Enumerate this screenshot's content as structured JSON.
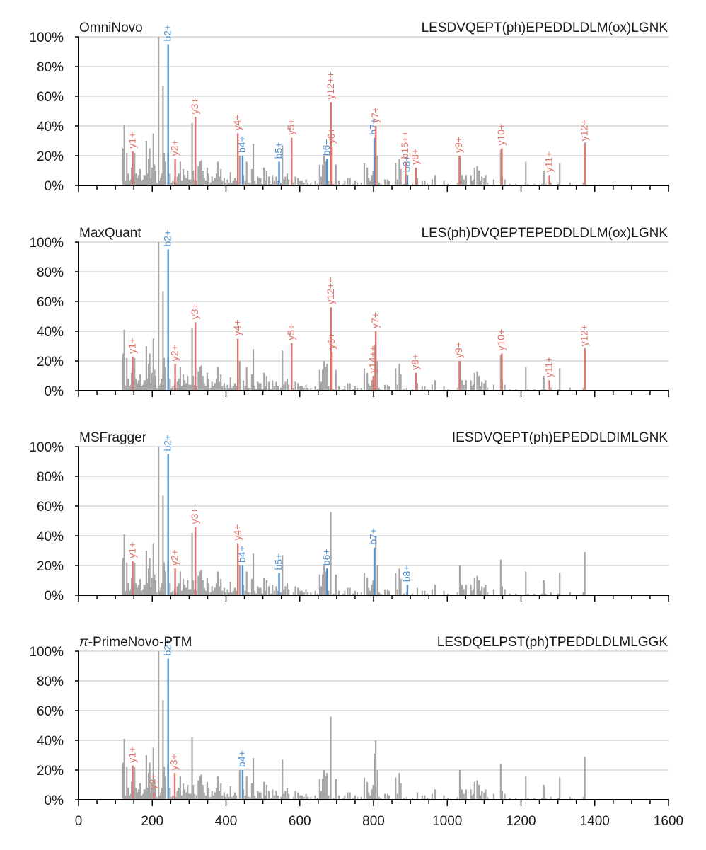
{
  "chart_data": {
    "type": "bar",
    "subtype": "annotated MS/MS spectra (stem plot)",
    "x_range": [
      0,
      1600
    ],
    "x_ticks": [
      "0",
      "200",
      "400",
      "600",
      "800",
      "1000",
      "1200",
      "1400",
      "1600"
    ],
    "y_range": [
      0,
      100
    ],
    "y_ticks": [
      "0%",
      "20%",
      "40%",
      "60%",
      "80%",
      "100%"
    ],
    "grid": "horizontal",
    "colors": {
      "unmatched": "#a6a6a6",
      "b_ion": "#4a90d0",
      "y_ion": "#e0726a",
      "grid": "#cfcfcf",
      "axis": "#000000"
    },
    "unmatched_peaks": [
      [
        121,
        25
      ],
      [
        124,
        41
      ],
      [
        127,
        3
      ],
      [
        131,
        22
      ],
      [
        135,
        8
      ],
      [
        139,
        3
      ],
      [
        142,
        4
      ],
      [
        144,
        12
      ],
      [
        148,
        6
      ],
      [
        152,
        22
      ],
      [
        156,
        8
      ],
      [
        159,
        5
      ],
      [
        163,
        7
      ],
      [
        167,
        11
      ],
      [
        171,
        3
      ],
      [
        175,
        4
      ],
      [
        178,
        7
      ],
      [
        181,
        7
      ],
      [
        184,
        30
      ],
      [
        188,
        8
      ],
      [
        190,
        18
      ],
      [
        193,
        25
      ],
      [
        196,
        5
      ],
      [
        199,
        12
      ],
      [
        203,
        35
      ],
      [
        206,
        14
      ],
      [
        209,
        10
      ],
      [
        212,
        2
      ],
      [
        217,
        100
      ],
      [
        220,
        3
      ],
      [
        223,
        5
      ],
      [
        226,
        8
      ],
      [
        229,
        67
      ],
      [
        232,
        22
      ],
      [
        235,
        16
      ],
      [
        248,
        8
      ],
      [
        252,
        2
      ],
      [
        256,
        3
      ],
      [
        261,
        5
      ],
      [
        264,
        2
      ],
      [
        268,
        6
      ],
      [
        272,
        8
      ],
      [
        276,
        16
      ],
      [
        280,
        3
      ],
      [
        284,
        11
      ],
      [
        288,
        7
      ],
      [
        292,
        5
      ],
      [
        296,
        10
      ],
      [
        300,
        4
      ],
      [
        304,
        4
      ],
      [
        308,
        42
      ],
      [
        311,
        10
      ],
      [
        315,
        4
      ],
      [
        320,
        3
      ],
      [
        325,
        13
      ],
      [
        329,
        16
      ],
      [
        333,
        17
      ],
      [
        337,
        10
      ],
      [
        341,
        5
      ],
      [
        345,
        3
      ],
      [
        349,
        12
      ],
      [
        353,
        8
      ],
      [
        358,
        2
      ],
      [
        362,
        6
      ],
      [
        366,
        3
      ],
      [
        370,
        5
      ],
      [
        374,
        8
      ],
      [
        378,
        16
      ],
      [
        382,
        6
      ],
      [
        386,
        11
      ],
      [
        390,
        3
      ],
      [
        395,
        5
      ],
      [
        399,
        2
      ],
      [
        404,
        4
      ],
      [
        408,
        2
      ],
      [
        412,
        9
      ],
      [
        416,
        2
      ],
      [
        420,
        3
      ],
      [
        424,
        5
      ],
      [
        428,
        3
      ],
      [
        437,
        20
      ],
      [
        447,
        7
      ],
      [
        452,
        3
      ],
      [
        456,
        16
      ],
      [
        460,
        2
      ],
      [
        465,
        2
      ],
      [
        470,
        11
      ],
      [
        474,
        28
      ],
      [
        478,
        3
      ],
      [
        482,
        1
      ],
      [
        486,
        6
      ],
      [
        490,
        5
      ],
      [
        494,
        5
      ],
      [
        498,
        1
      ],
      [
        503,
        12
      ],
      [
        507,
        3
      ],
      [
        510,
        10
      ],
      [
        516,
        6
      ],
      [
        522,
        1
      ],
      [
        526,
        7
      ],
      [
        531,
        3
      ],
      [
        536,
        6
      ],
      [
        541,
        3
      ],
      [
        549,
        2
      ],
      [
        553,
        27
      ],
      [
        557,
        4
      ],
      [
        561,
        6
      ],
      [
        566,
        8
      ],
      [
        570,
        4
      ],
      [
        583,
        2
      ],
      [
        588,
        6
      ],
      [
        595,
        5
      ],
      [
        601,
        3
      ],
      [
        606,
        3
      ],
      [
        611,
        2
      ],
      [
        617,
        4
      ],
      [
        622,
        2
      ],
      [
        630,
        2
      ],
      [
        642,
        3
      ],
      [
        648,
        1
      ],
      [
        654,
        14
      ],
      [
        658,
        6
      ],
      [
        662,
        14
      ],
      [
        666,
        20
      ],
      [
        670,
        16
      ],
      [
        674,
        18
      ],
      [
        678,
        3
      ],
      [
        684,
        56
      ],
      [
        692,
        1
      ],
      [
        698,
        14
      ],
      [
        706,
        3
      ],
      [
        717,
        1
      ],
      [
        722,
        3
      ],
      [
        730,
        5
      ],
      [
        736,
        5
      ],
      [
        745,
        1
      ],
      [
        750,
        3
      ],
      [
        756,
        2
      ],
      [
        767,
        2
      ],
      [
        775,
        15
      ],
      [
        783,
        12
      ],
      [
        787,
        5
      ],
      [
        791,
        3
      ],
      [
        795,
        7
      ],
      [
        799,
        10
      ],
      [
        803,
        31
      ],
      [
        806,
        40
      ],
      [
        811,
        20
      ],
      [
        815,
        2
      ],
      [
        820,
        1
      ],
      [
        831,
        4
      ],
      [
        838,
        4
      ],
      [
        842,
        3
      ],
      [
        860,
        15
      ],
      [
        865,
        4
      ],
      [
        870,
        18
      ],
      [
        874,
        11
      ],
      [
        882,
        1
      ],
      [
        890,
        2
      ],
      [
        906,
        1
      ],
      [
        919,
        5
      ],
      [
        932,
        3
      ],
      [
        939,
        3
      ],
      [
        946,
        1
      ],
      [
        959,
        4
      ],
      [
        967,
        7
      ],
      [
        991,
        3
      ],
      [
        1002,
        1
      ],
      [
        1028,
        2
      ],
      [
        1034,
        20
      ],
      [
        1040,
        7
      ],
      [
        1045,
        4
      ],
      [
        1051,
        7
      ],
      [
        1064,
        7
      ],
      [
        1067,
        3
      ],
      [
        1071,
        4
      ],
      [
        1074,
        12
      ],
      [
        1081,
        13
      ],
      [
        1086,
        10
      ],
      [
        1090,
        3
      ],
      [
        1094,
        6
      ],
      [
        1100,
        5
      ],
      [
        1104,
        7
      ],
      [
        1109,
        2
      ],
      [
        1126,
        4
      ],
      [
        1145,
        24
      ],
      [
        1149,
        6
      ],
      [
        1156,
        4
      ],
      [
        1170,
        1
      ],
      [
        1186,
        1
      ],
      [
        1213,
        16
      ],
      [
        1219,
        1
      ],
      [
        1236,
        1
      ],
      [
        1257,
        1
      ],
      [
        1262,
        10
      ],
      [
        1267,
        1
      ],
      [
        1281,
        2
      ],
      [
        1301,
        1
      ],
      [
        1305,
        15
      ],
      [
        1333,
        2
      ],
      [
        1369,
        2
      ],
      [
        1373,
        29
      ]
    ],
    "panels": [
      {
        "title": "OmniNovo",
        "sequence": "LESDVQEPT(ph)EPEDDLDLM(ox)LGNK",
        "ions": [
          {
            "label": "b2+",
            "type": "b",
            "mz": 243,
            "intensity": 95
          },
          {
            "label": "b4+",
            "type": "b",
            "mz": 445,
            "intensity": 20
          },
          {
            "label": "b5+",
            "type": "b",
            "mz": 544,
            "intensity": 16
          },
          {
            "label": "b6+",
            "type": "b",
            "mz": 674,
            "intensity": 18
          },
          {
            "label": "b7+",
            "type": "b",
            "mz": 802,
            "intensity": 32
          },
          {
            "label": "b8+",
            "type": "b",
            "mz": 892,
            "intensity": 7
          },
          {
            "label": "y1+",
            "type": "y",
            "mz": 147,
            "intensity": 23
          },
          {
            "label": "y2+",
            "type": "y",
            "mz": 262,
            "intensity": 18
          },
          {
            "label": "y3+",
            "type": "y",
            "mz": 317,
            "intensity": 46
          },
          {
            "label": "y4+",
            "type": "y",
            "mz": 432,
            "intensity": 35
          },
          {
            "label": "y5+",
            "type": "y",
            "mz": 578,
            "intensity": 32
          },
          {
            "label": "y6+",
            "type": "y",
            "mz": 687,
            "intensity": 26
          },
          {
            "label": "y12++",
            "type": "y",
            "mz": 685,
            "intensity": 56
          },
          {
            "label": "y7+",
            "type": "y",
            "mz": 806,
            "intensity": 40
          },
          {
            "label": "b15++",
            "type": "y",
            "mz": 887,
            "intensity": 16
          },
          {
            "label": "y8+",
            "type": "y",
            "mz": 915,
            "intensity": 12
          },
          {
            "label": "y9+",
            "type": "y",
            "mz": 1033,
            "intensity": 20
          },
          {
            "label": "y10+",
            "type": "y",
            "mz": 1148,
            "intensity": 25
          },
          {
            "label": "y11+",
            "type": "y",
            "mz": 1277,
            "intensity": 7
          },
          {
            "label": "y12+",
            "type": "y",
            "mz": 1373,
            "intensity": 28
          }
        ]
      },
      {
        "title": "MaxQuant",
        "sequence": "LES(ph)DVQEPTEPEDDLDLM(ox)LGNK",
        "ions": [
          {
            "label": "b2+",
            "type": "b",
            "mz": 243,
            "intensity": 95
          },
          {
            "label": "y1+",
            "type": "y",
            "mz": 147,
            "intensity": 23
          },
          {
            "label": "y2+",
            "type": "y",
            "mz": 262,
            "intensity": 18
          },
          {
            "label": "y3+",
            "type": "y",
            "mz": 317,
            "intensity": 46
          },
          {
            "label": "y4+",
            "type": "y",
            "mz": 432,
            "intensity": 35
          },
          {
            "label": "y5+",
            "type": "y",
            "mz": 578,
            "intensity": 32
          },
          {
            "label": "y6+",
            "type": "y",
            "mz": 687,
            "intensity": 26
          },
          {
            "label": "y12++",
            "type": "y",
            "mz": 685,
            "intensity": 56
          },
          {
            "label": "y14++",
            "type": "y",
            "mz": 800,
            "intensity": 10
          },
          {
            "label": "y7+",
            "type": "y",
            "mz": 806,
            "intensity": 40
          },
          {
            "label": "y8+",
            "type": "y",
            "mz": 915,
            "intensity": 12
          },
          {
            "label": "y9+",
            "type": "y",
            "mz": 1033,
            "intensity": 20
          },
          {
            "label": "y10+",
            "type": "y",
            "mz": 1148,
            "intensity": 25
          },
          {
            "label": "y11+",
            "type": "y",
            "mz": 1277,
            "intensity": 7
          },
          {
            "label": "y12+",
            "type": "y",
            "mz": 1373,
            "intensity": 28
          }
        ]
      },
      {
        "title": "MSFragger",
        "sequence": "IESDVQEPT(ph)EPEDDLDIMLGNK",
        "ions": [
          {
            "label": "b2+",
            "type": "b",
            "mz": 243,
            "intensity": 95
          },
          {
            "label": "b4+",
            "type": "b",
            "mz": 445,
            "intensity": 20
          },
          {
            "label": "b5+",
            "type": "b",
            "mz": 544,
            "intensity": 15
          },
          {
            "label": "b6+",
            "type": "b",
            "mz": 674,
            "intensity": 18
          },
          {
            "label": "b7+",
            "type": "b",
            "mz": 802,
            "intensity": 32
          },
          {
            "label": "b8+",
            "type": "b",
            "mz": 892,
            "intensity": 7
          },
          {
            "label": "y1+",
            "type": "y",
            "mz": 147,
            "intensity": 23
          },
          {
            "label": "y2+",
            "type": "y",
            "mz": 262,
            "intensity": 18
          },
          {
            "label": "y3+",
            "type": "y",
            "mz": 317,
            "intensity": 46
          },
          {
            "label": "y4+",
            "type": "y",
            "mz": 432,
            "intensity": 35
          }
        ]
      },
      {
        "title": "π-PrimeNovo-PTM",
        "sequence": "LESDQELPST(ph)TPEDDLDLMLGGK",
        "ions": [
          {
            "label": "b2+",
            "type": "b",
            "mz": 243,
            "intensity": 95
          },
          {
            "label": "b4+",
            "type": "b",
            "mz": 445,
            "intensity": 20
          },
          {
            "label": "y1+",
            "type": "y",
            "mz": 147,
            "intensity": 23
          },
          {
            "label": "y2+",
            "type": "y",
            "mz": 204,
            "intensity": 5
          },
          {
            "label": "y3+",
            "type": "y",
            "mz": 261,
            "intensity": 18
          }
        ]
      }
    ]
  }
}
